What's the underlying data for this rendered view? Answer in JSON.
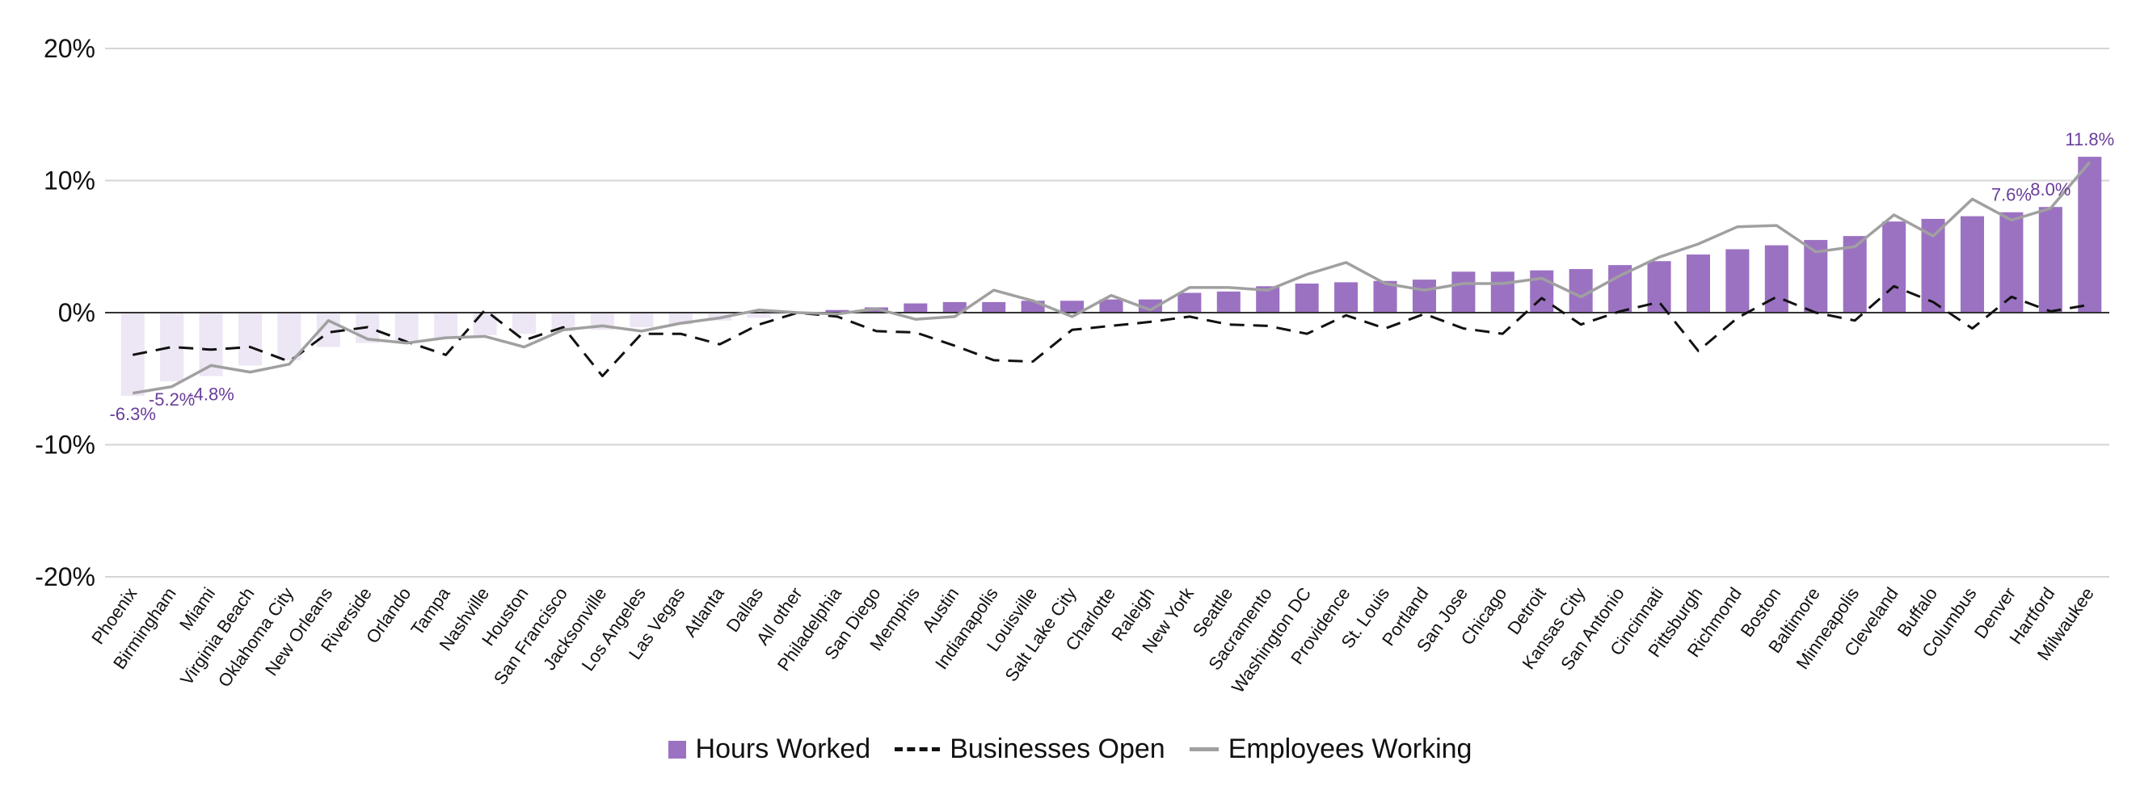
{
  "chart_data": {
    "type": "bar",
    "categories": [
      "Phoenix",
      "Birmingham",
      "Miami",
      "Virginia Beach",
      "Oklahoma City",
      "New Orleans",
      "Riverside",
      "Orlando",
      "Tampa",
      "Nashville",
      "Houston",
      "San Francisco",
      "Jacksonville",
      "Los Angeles",
      "Las Vegas",
      "Atlanta",
      "Dallas",
      "All other",
      "Philadelphia",
      "San Diego",
      "Memphis",
      "Austin",
      "Indianapolis",
      "Louisville",
      "Salt Lake City",
      "Charlotte",
      "Raleigh",
      "New York",
      "Seattle",
      "Sacramento",
      "Washington DC",
      "Providence",
      "St. Louis",
      "Portland",
      "San Jose",
      "Chicago",
      "Detroit",
      "Kansas City",
      "San Antonio",
      "Cincinnati",
      "Pittsburgh",
      "Richmond",
      "Boston",
      "Baltimore",
      "Minneapolis",
      "Cleveland",
      "Buffalo",
      "Columbus",
      "Denver",
      "Hartford",
      "Milwaukee"
    ],
    "series": [
      {
        "name": "Hours Worked",
        "kind": "bar",
        "color": "#9b72c2",
        "negative_color": "#ede6f4",
        "values": [
          -6.3,
          -5.2,
          -4.8,
          -4.0,
          -3.6,
          -2.6,
          -2.3,
          -2.1,
          -1.9,
          -1.7,
          -1.6,
          -1.4,
          -1.3,
          -1.1,
          -0.9,
          -0.6,
          -0.4,
          0.0,
          0.2,
          0.4,
          0.7,
          0.8,
          0.8,
          0.9,
          0.9,
          1.0,
          1.0,
          1.5,
          1.6,
          2.0,
          2.2,
          2.3,
          2.4,
          2.5,
          3.1,
          3.1,
          3.2,
          3.3,
          3.6,
          3.9,
          4.4,
          4.8,
          5.1,
          5.5,
          5.8,
          6.9,
          7.1,
          7.3,
          7.6,
          8.0,
          11.8
        ]
      },
      {
        "name": "Businesses Open",
        "kind": "line",
        "style": "dashed",
        "color": "#111111",
        "values": [
          -3.2,
          -2.6,
          -2.8,
          -2.6,
          -3.7,
          -1.5,
          -1.1,
          -2.2,
          -3.2,
          0.2,
          -2.1,
          -1.1,
          -4.8,
          -1.6,
          -1.6,
          -2.4,
          -0.9,
          0.0,
          -0.3,
          -1.4,
          -1.5,
          -2.5,
          -3.6,
          -3.7,
          -1.3,
          -1.0,
          -0.7,
          -0.3,
          -0.9,
          -1.0,
          -1.6,
          -0.2,
          -1.2,
          -0.1,
          -1.2,
          -1.6,
          1.1,
          -0.9,
          0.1,
          0.8,
          -2.9,
          -0.4,
          1.2,
          0.0,
          -0.6,
          2.0,
          0.8,
          -1.2,
          1.2,
          0.1,
          0.6
        ]
      },
      {
        "name": "Employees Working",
        "kind": "line",
        "style": "solid",
        "color": "#a0a0a0",
        "values": [
          -6.1,
          -5.6,
          -4.0,
          -4.5,
          -3.9,
          -0.6,
          -2.0,
          -2.3,
          -1.9,
          -1.8,
          -2.6,
          -1.3,
          -1.0,
          -1.4,
          -0.8,
          -0.4,
          0.2,
          0.0,
          -0.1,
          0.3,
          -0.5,
          -0.3,
          1.7,
          0.9,
          -0.3,
          1.3,
          0.2,
          1.9,
          1.9,
          1.7,
          2.9,
          3.8,
          2.2,
          1.7,
          2.2,
          2.2,
          2.6,
          1.2,
          2.8,
          4.2,
          5.2,
          6.5,
          6.6,
          4.6,
          5.0,
          7.4,
          5.8,
          8.6,
          7.0,
          7.9,
          11.4
        ]
      }
    ],
    "data_labels": [
      {
        "index": 0,
        "text": "-6.3%"
      },
      {
        "index": 1,
        "text": "-5.2%"
      },
      {
        "index": 2,
        "text": "-4.8%"
      },
      {
        "index": 48,
        "text": "7.6%"
      },
      {
        "index": 49,
        "text": "8.0%"
      },
      {
        "index": 50,
        "text": "11.8%"
      }
    ],
    "y_ticks": [
      "20%",
      "10%",
      "0%",
      "-10%",
      "-20%"
    ],
    "y_tick_values": [
      20,
      10,
      0,
      -10,
      -20
    ],
    "ylim": [
      -20,
      20
    ],
    "grid": true,
    "legend_position": "bottom-center",
    "legend": [
      "Hours Worked",
      "Businesses Open",
      "Employees Working"
    ]
  }
}
